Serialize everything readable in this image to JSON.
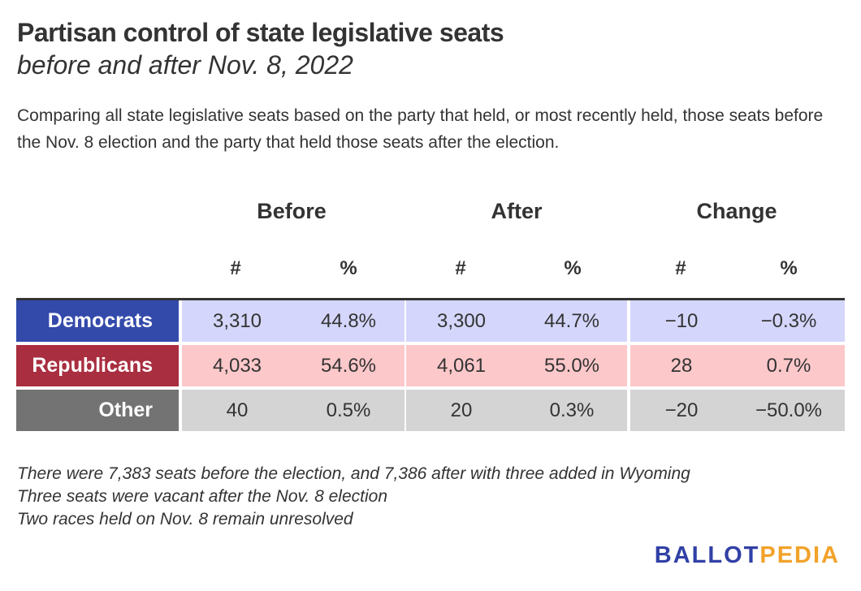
{
  "header": {
    "title": "Partisan control of state legislative seats",
    "subtitle": "before and after Nov. 8, 2022",
    "description": "Comparing all state legislative seats based on the party that held, or most recently held, those seats before the Nov. 8 election and the party that held those seats after the election."
  },
  "chart_data": {
    "type": "table",
    "title": "Partisan control of state legislative seats",
    "subtitle": "before and after Nov. 8, 2022",
    "column_groups": [
      "Before",
      "After",
      "Change"
    ],
    "subcolumns": [
      "#",
      "%"
    ],
    "rows": [
      {
        "party": "Democrats",
        "before_num": "3,310",
        "before_pct": "44.8%",
        "after_num": "3,300",
        "after_pct": "44.7%",
        "change_num": "−10",
        "change_pct": "−0.3%"
      },
      {
        "party": "Republicans",
        "before_num": "4,033",
        "before_pct": "54.6%",
        "after_num": "4,061",
        "after_pct": "55.0%",
        "change_num": "28",
        "change_pct": "0.7%"
      },
      {
        "party": "Other",
        "before_num": "40",
        "before_pct": "0.5%",
        "after_num": "20",
        "after_pct": "0.3%",
        "change_num": "−20",
        "change_pct": "−50.0%"
      }
    ]
  },
  "colors": {
    "democrats_label": "#334aab",
    "democrats_cell": "#d4d6fc",
    "republicans_label": "#a92e40",
    "republicans_cell": "#fdc8ca",
    "other_label": "#737373",
    "other_cell": "#d4d4d4"
  },
  "notes": [
    "There were 7,383 seats before the election, and 7,386 after with three added in Wyoming",
    "Three seats were vacant after the Nov. 8 election",
    "Two races held on Nov. 8 remain unresolved"
  ],
  "logo": {
    "part1": "BALLOT",
    "part2": "PEDIA"
  }
}
